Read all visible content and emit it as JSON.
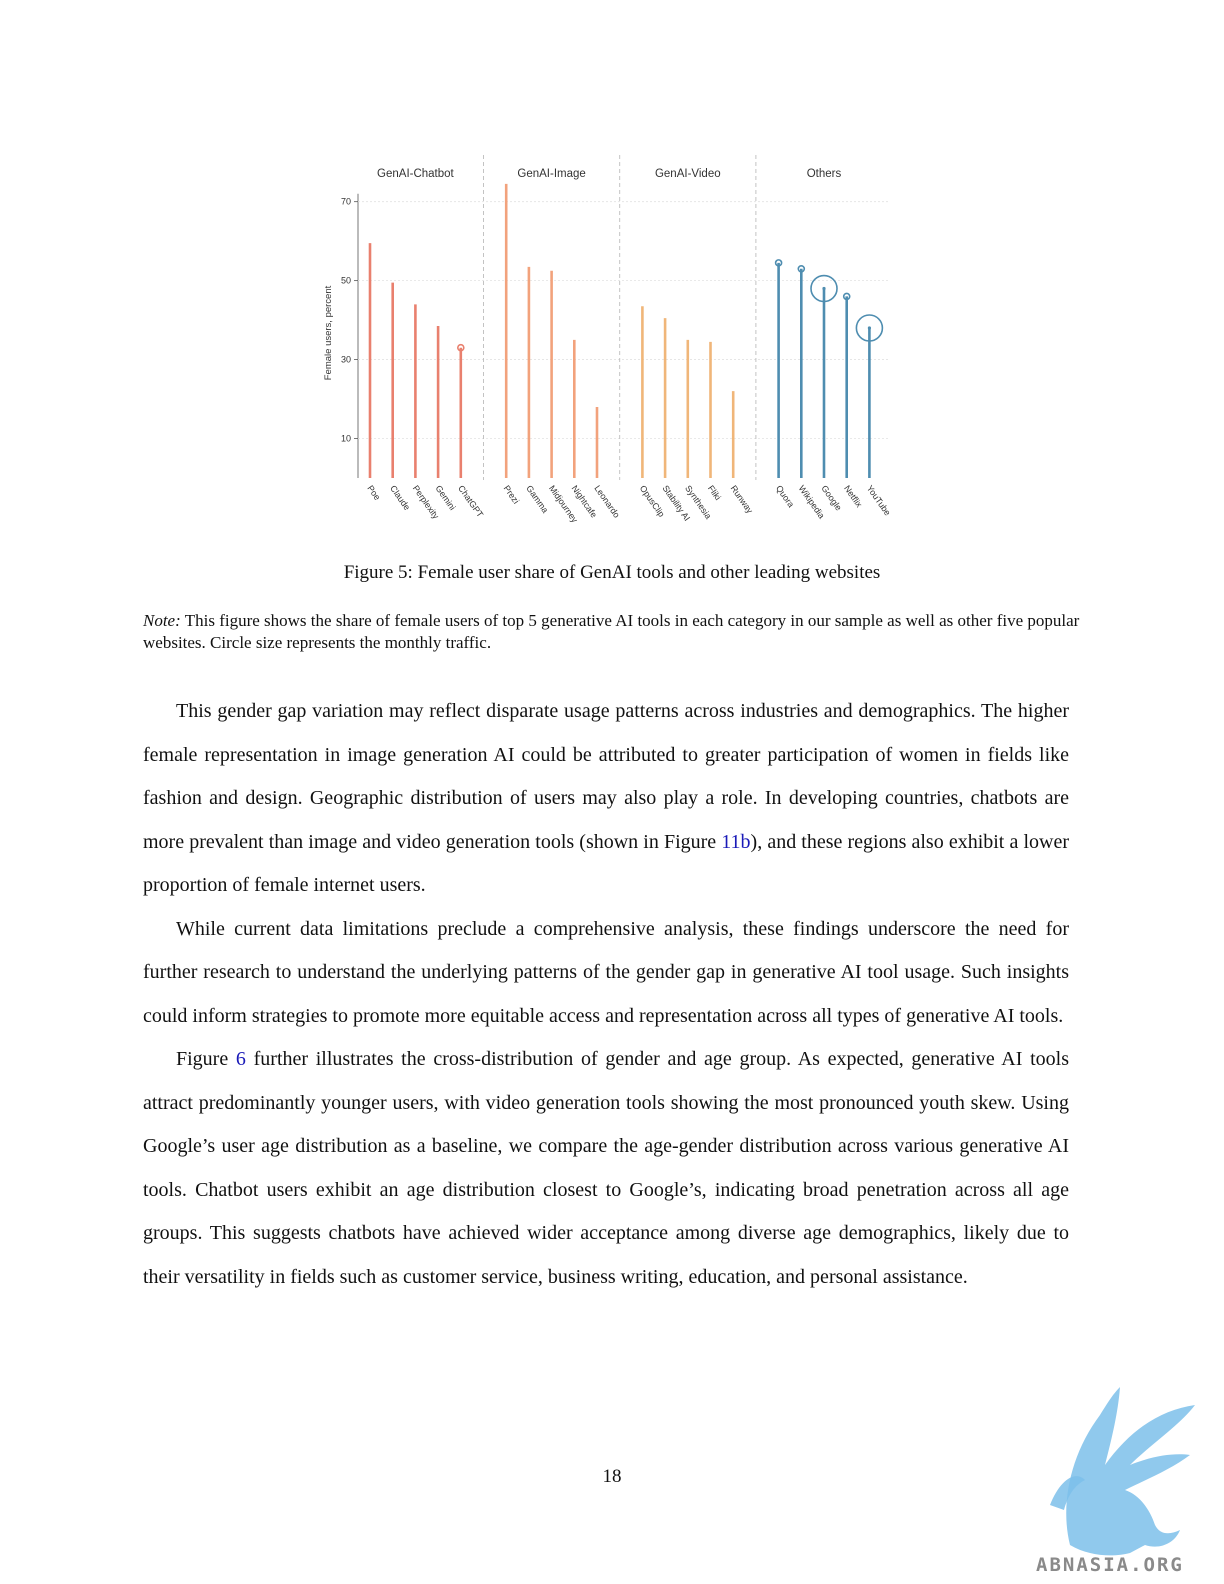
{
  "figure": {
    "caption": "Figure 5: Female user share of GenAI tools and other leading websites",
    "note_label": "Note:",
    "note_text": " This figure shows the share of female users of top 5 generative AI tools in each category in our sample as well as other five popular websites. Circle size represents the monthly traffic."
  },
  "chart_data": {
    "type": "lollipop",
    "ylabel": "Female users, percent",
    "yticks": [
      10,
      30,
      50,
      70
    ],
    "ylim": [
      0,
      76
    ],
    "grid": true,
    "groups": [
      {
        "name": "GenAI-Chatbot",
        "color": "#e9806e",
        "items": [
          {
            "label": "Poe",
            "value": 59.5
          },
          {
            "label": "Claude",
            "value": 49.5
          },
          {
            "label": "Perplexity",
            "value": 44
          },
          {
            "label": "Gemini",
            "value": 38.5
          },
          {
            "label": "ChatGPT",
            "value": 33,
            "traffic_circle": "small"
          }
        ]
      },
      {
        "name": "GenAI-Image",
        "color": "#f2a27c",
        "items": [
          {
            "label": "Prezi",
            "value": 74.5
          },
          {
            "label": "Gamma",
            "value": 53.5
          },
          {
            "label": "Midjourney",
            "value": 52.5
          },
          {
            "label": "Nightcafe",
            "value": 35
          },
          {
            "label": "Leonardo",
            "value": 18
          }
        ]
      },
      {
        "name": "GenAI-Video",
        "color": "#f0b679",
        "items": [
          {
            "label": "OpusClip",
            "value": 43.5
          },
          {
            "label": "Stability AI",
            "value": 40.5
          },
          {
            "label": "Synthesia",
            "value": 35
          },
          {
            "label": "Fliki",
            "value": 34.5
          },
          {
            "label": "Runway",
            "value": 22
          }
        ]
      },
      {
        "name": "Others",
        "color": "#4e8db0",
        "items": [
          {
            "label": "Quora",
            "value": 54.5,
            "traffic_circle": "small"
          },
          {
            "label": "Wikipedia",
            "value": 53,
            "traffic_circle": "small"
          },
          {
            "label": "Google",
            "value": 48,
            "traffic_circle": "large"
          },
          {
            "label": "Netflix",
            "value": 46,
            "traffic_circle": "small"
          },
          {
            "label": "YouTube",
            "value": 38,
            "traffic_circle": "large"
          }
        ]
      }
    ]
  },
  "body": {
    "p1_a": "This gender gap variation may reflect disparate usage patterns across industries and demographics. The higher female representation in image generation AI could be attributed to greater participation of women in fields like fashion and design. Geographic distribution of users may also play a role. In developing countries, chatbots are more prevalent than image and video generation tools (shown in Figure ",
    "p1_link": "11b",
    "p1_b": "), and these regions also exhibit a lower proportion of female internet users.",
    "p2": "While current data limitations preclude a comprehensive analysis, these findings underscore the need for further research to understand the underlying patterns of the gender gap in generative AI tool usage. Such insights could inform strategies to promote more equitable access and representation across all types of generative AI tools.",
    "p3_a": "Figure ",
    "p3_link": "6",
    "p3_b": " further illustrates the cross-distribution of gender and age group. As expected, generative AI tools attract predominantly younger users, with video generation tools showing the most pronounced youth skew. Using Google’s user age distribution as a baseline, we compare the age-gender distribution across various generative AI tools. Chatbot users exhibit an age distribution closest to Google’s, indicating broad penetration across all age groups. This suggests chatbots have achieved wider acceptance among diverse age demographics, likely due to their versatility in fields such as customer service, business writing, education, and personal assistance."
  },
  "page_number": "18",
  "watermark": {
    "text": "ABNASIA.ORG"
  }
}
